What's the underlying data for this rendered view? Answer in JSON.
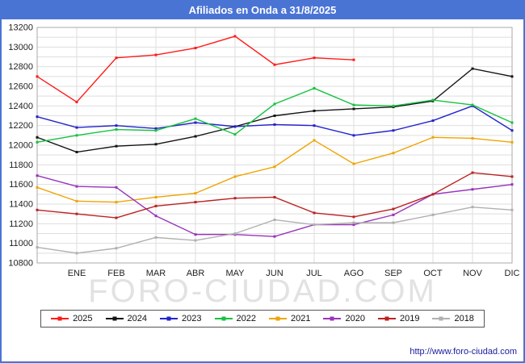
{
  "title": "Afiliados en Onda a 31/8/2025",
  "watermark": "FORO-CIUDAD.COM",
  "footer": {
    "link": "http://www.foro-ciudad.com"
  },
  "chart_data": {
    "type": "line",
    "title": "Afiliados en Onda a 31/8/2025",
    "x_labels": [
      "ENE",
      "FEB",
      "MAR",
      "ABR",
      "MAY",
      "JUN",
      "JUL",
      "AGO",
      "SEP",
      "OCT",
      "NOV",
      "DIC"
    ],
    "xlabel": "",
    "ylabel": "",
    "ylim": [
      10800,
      13200
    ],
    "y_tick_step": 200,
    "y_grid_step": 100,
    "grid": true,
    "legend_position": "bottom",
    "note": "First value of each series sits at the left plot edge; following values align with the ENE-DIC gridlines. 2025 series ends in AGO.",
    "series": [
      {
        "name": "2025",
        "color": "#ff1a1a",
        "values": [
          12700,
          12440,
          12890,
          12920,
          12990,
          13110,
          12820,
          12890,
          12870
        ]
      },
      {
        "name": "2024",
        "color": "#141414",
        "values": [
          12080,
          11930,
          11990,
          12010,
          12090,
          12190,
          12300,
          12350,
          12370,
          12390,
          12450,
          12780,
          12700
        ]
      },
      {
        "name": "2023",
        "color": "#2323cc",
        "values": [
          12290,
          12180,
          12200,
          12170,
          12230,
          12190,
          12210,
          12200,
          12100,
          12150,
          12250,
          12400,
          12150
        ]
      },
      {
        "name": "2022",
        "color": "#16c240",
        "values": [
          12030,
          12100,
          12160,
          12150,
          12270,
          12110,
          12420,
          12580,
          12410,
          12400,
          12460,
          12410,
          12230
        ]
      },
      {
        "name": "2021",
        "color": "#f0a400",
        "values": [
          11570,
          11430,
          11420,
          11470,
          11510,
          11680,
          11780,
          12050,
          11810,
          11920,
          12080,
          12070,
          12030
        ]
      },
      {
        "name": "2020",
        "color": "#9933bb",
        "values": [
          11690,
          11580,
          11570,
          11280,
          11090,
          11090,
          11070,
          11190,
          11190,
          11290,
          11500,
          11550,
          11600
        ]
      },
      {
        "name": "2019",
        "color": "#bb2222",
        "values": [
          11340,
          11300,
          11260,
          11380,
          11420,
          11460,
          11470,
          11310,
          11270,
          11350,
          11500,
          11720,
          11680
        ]
      },
      {
        "name": "2018",
        "color": "#b0b0b0",
        "values": [
          10960,
          10900,
          10950,
          11060,
          11030,
          11100,
          11240,
          11190,
          11210,
          11210,
          11290,
          11370,
          11340
        ]
      }
    ]
  }
}
